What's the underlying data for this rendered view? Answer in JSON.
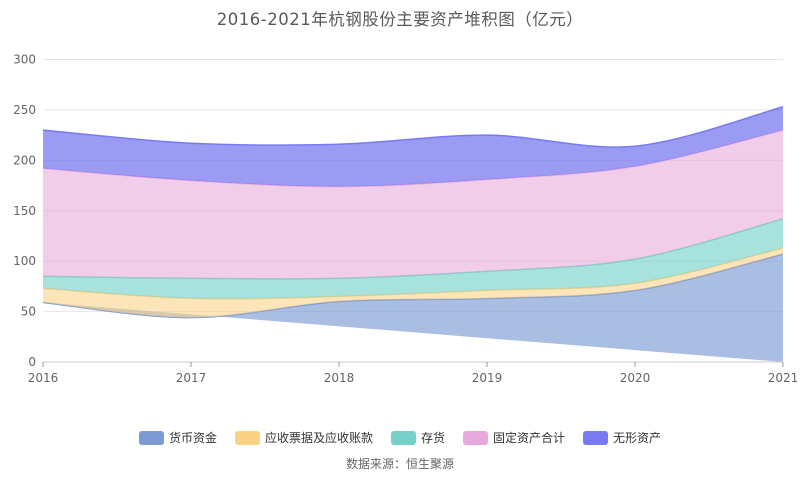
{
  "title": "2016-2021年杭钢股份主要资产堆积图（亿元）",
  "source": "数据来源：恒生聚源",
  "colors": {
    "title_text": "#595959",
    "axis_label_text": "#666666",
    "legend_text": "#333333",
    "gridline": "#e4e4ef",
    "axis_line": "#cccccc",
    "tick": "#999999",
    "background": "#ffffff"
  },
  "chart_data": {
    "type": "area",
    "stacked": true,
    "smooth": true,
    "title": "2016-2021年杭钢股份主要资产堆积图（亿元）",
    "x": [
      "2016",
      "2017",
      "2018",
      "2019",
      "2020",
      "2021"
    ],
    "xlabel": "",
    "ylabel": "",
    "ylim": [
      0,
      300
    ],
    "ytick_interval": 50,
    "yticks": [
      "0",
      "50",
      "100",
      "150",
      "200",
      "250",
      "300"
    ],
    "grid": true,
    "legend_position": "bottom",
    "unit": "亿元",
    "series": [
      {
        "name": "货币资金",
        "id": "monetary-funds",
        "color": "#7b9bd2",
        "fill_opacity": 0.65,
        "values": [
          59,
          44,
          60,
          63,
          71,
          107
        ]
      },
      {
        "name": "应收票据及应收账款",
        "id": "notes-and-accounts-receivable",
        "color": "#fbd186",
        "fill_opacity": 0.57,
        "values": [
          14,
          19,
          5,
          8,
          7,
          6
        ]
      },
      {
        "name": "存货",
        "id": "inventory",
        "color": "#77d1c8",
        "fill_opacity": 0.64,
        "values": [
          12,
          20,
          18,
          19,
          24,
          29
        ]
      },
      {
        "name": "固定资产合计",
        "id": "fixed-assets-total",
        "color": "#e8aadc",
        "fill_opacity": 0.59,
        "values": [
          107,
          97,
          91,
          91,
          92,
          88
        ]
      },
      {
        "name": "无形资产",
        "id": "intangible-assets",
        "color": "#7a7af0",
        "fill_opacity": 0.75,
        "values": [
          38,
          37,
          42,
          44,
          20,
          23
        ]
      }
    ],
    "stacked_totals": [
      230,
      217,
      216,
      225,
      214,
      253
    ]
  }
}
